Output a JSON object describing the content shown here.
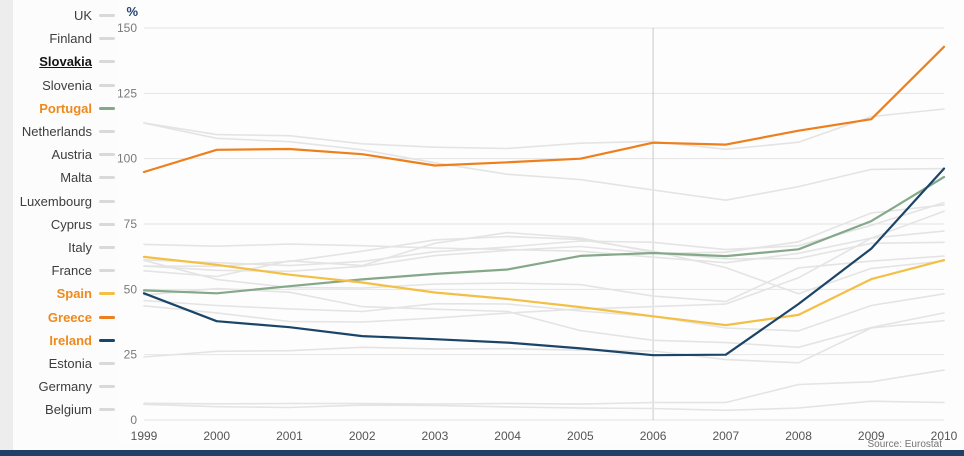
{
  "ui": {
    "bottom_bar_color": "#1f3f66",
    "left_strip_color": "#ededed"
  },
  "legend": {
    "items": [
      {
        "label": "UK",
        "swatch": "#d9d9d9"
      },
      {
        "label": "Finland",
        "swatch": "#d9d9d9"
      },
      {
        "label": "Slovakia",
        "swatch": "#d9d9d9",
        "bold": true,
        "underline": true
      },
      {
        "label": "Slovenia",
        "swatch": "#d9d9d9"
      },
      {
        "label": "Portugal",
        "swatch": "#84a889",
        "highlight": "#ee8a1d"
      },
      {
        "label": "Netherlands",
        "swatch": "#d9d9d9"
      },
      {
        "label": "Austria",
        "swatch": "#d9d9d9"
      },
      {
        "label": "Malta",
        "swatch": "#d9d9d9"
      },
      {
        "label": "Luxembourg",
        "swatch": "#d9d9d9"
      },
      {
        "label": "Cyprus",
        "swatch": "#d9d9d9"
      },
      {
        "label": "Italy",
        "swatch": "#d9d9d9"
      },
      {
        "label": "France",
        "swatch": "#d9d9d9"
      },
      {
        "label": "Spain",
        "swatch": "#f3bf45",
        "highlight": "#ee8a1d"
      },
      {
        "label": "Greece",
        "swatch": "#ee7f1d",
        "highlight": "#ee8a1d"
      },
      {
        "label": "Ireland",
        "swatch": "#1b4568",
        "highlight": "#ee8a1d"
      },
      {
        "label": "Estonia",
        "swatch": "#d9d9d9"
      },
      {
        "label": "Germany",
        "swatch": "#d9d9d9"
      },
      {
        "label": "Belgium",
        "swatch": "#d9d9d9"
      }
    ]
  },
  "chart_data": {
    "type": "line",
    "title": "",
    "ylabel": "%",
    "xlabel": "",
    "source": "Source: Eurostat",
    "x": [
      1999,
      2000,
      2001,
      2002,
      2003,
      2004,
      2005,
      2006,
      2007,
      2008,
      2009,
      2010
    ],
    "ylim": [
      0,
      150
    ],
    "yticks": [
      0,
      25,
      50,
      75,
      100,
      125,
      150
    ],
    "grid": true,
    "grid_color": "#e4e4e4",
    "marker_x": 2006,
    "marker_color": "#c9c9c9",
    "legend_position": "left",
    "series": [
      {
        "name": "UK",
        "color": "#e4e4e4",
        "highlighted": false,
        "values": [
          43.7,
          41.0,
          37.7,
          37.5,
          39.0,
          40.9,
          42.5,
          43.4,
          44.4,
          54.4,
          69.6,
          79.9
        ]
      },
      {
        "name": "Finland",
        "color": "#e4e4e4",
        "highlighted": false,
        "values": [
          45.7,
          43.8,
          42.5,
          41.5,
          44.5,
          44.4,
          41.7,
          39.6,
          35.2,
          34.1,
          43.8,
          48.3
        ]
      },
      {
        "name": "Slovakia",
        "color": "#e4e4e4",
        "highlighted": false,
        "values": [
          47.8,
          50.3,
          48.9,
          43.4,
          42.4,
          41.5,
          34.2,
          30.5,
          29.6,
          27.8,
          35.4,
          41.0
        ]
      },
      {
        "name": "Slovenia",
        "color": "#e4e4e4",
        "highlighted": false,
        "values": [
          24.1,
          26.3,
          26.5,
          27.8,
          27.2,
          27.3,
          26.7,
          26.4,
          23.1,
          21.9,
          35.2,
          38.0
        ]
      },
      {
        "name": "Netherlands",
        "color": "#e4e4e4",
        "highlighted": false,
        "values": [
          61.1,
          53.8,
          50.7,
          50.5,
          52.0,
          52.4,
          51.8,
          47.4,
          45.3,
          58.2,
          60.8,
          62.7
        ]
      },
      {
        "name": "Austria",
        "color": "#e4e4e4",
        "highlighted": false,
        "values": [
          67.2,
          66.5,
          67.3,
          66.7,
          65.8,
          65.2,
          64.6,
          62.3,
          60.2,
          63.8,
          69.6,
          72.3
        ]
      },
      {
        "name": "Malta",
        "color": "#e4e4e4",
        "highlighted": false,
        "values": [
          57.1,
          54.9,
          60.9,
          59.1,
          67.6,
          71.7,
          69.7,
          64.1,
          61.7,
          61.8,
          67.6,
          68.0
        ]
      },
      {
        "name": "Luxembourg",
        "color": "#e4e4e4",
        "highlighted": false,
        "values": [
          6.4,
          6.2,
          6.3,
          6.3,
          6.1,
          6.3,
          6.1,
          6.7,
          6.7,
          13.6,
          14.6,
          19.1
        ]
      },
      {
        "name": "Cyprus",
        "color": "#e4e4e4",
        "highlighted": false,
        "values": [
          58.9,
          58.8,
          60.7,
          64.6,
          68.9,
          70.2,
          69.1,
          64.6,
          58.3,
          48.3,
          58.0,
          60.8
        ]
      },
      {
        "name": "Italy",
        "color": "#e4e4e4",
        "highlighted": false,
        "values": [
          113.7,
          109.2,
          108.8,
          105.7,
          104.4,
          103.9,
          105.9,
          106.6,
          103.6,
          106.3,
          116.1,
          119.0
        ]
      },
      {
        "name": "France",
        "color": "#e4e4e4",
        "highlighted": false,
        "values": [
          58.9,
          57.3,
          56.9,
          58.8,
          62.9,
          64.9,
          66.4,
          63.7,
          64.2,
          68.2,
          79.2,
          82.3
        ]
      },
      {
        "name": "Estonia",
        "color": "#e4e4e4",
        "highlighted": false,
        "values": [
          6.0,
          5.1,
          4.8,
          5.7,
          5.6,
          5.0,
          4.6,
          4.4,
          3.7,
          4.6,
          7.2,
          6.7
        ]
      },
      {
        "name": "Germany",
        "color": "#e4e4e4",
        "highlighted": false,
        "values": [
          61.3,
          60.2,
          59.1,
          60.7,
          64.4,
          66.2,
          68.5,
          68.0,
          65.2,
          66.7,
          74.5,
          83.2
        ]
      },
      {
        "name": "Belgium",
        "color": "#e4e4e4",
        "highlighted": false,
        "values": [
          113.6,
          107.8,
          106.5,
          103.4,
          98.4,
          94.0,
          92.0,
          88.0,
          84.1,
          89.3,
          95.9,
          96.2
        ]
      },
      {
        "name": "Portugal",
        "color": "#84a889",
        "highlighted": true,
        "values": [
          49.6,
          48.5,
          51.2,
          53.8,
          55.9,
          57.6,
          62.8,
          63.9,
          62.7,
          65.3,
          76.1,
          93.0
        ]
      },
      {
        "name": "Spain",
        "color": "#f3bf45",
        "highlighted": true,
        "values": [
          62.4,
          59.4,
          55.6,
          52.6,
          48.8,
          46.3,
          43.2,
          39.7,
          36.3,
          40.2,
          53.9,
          61.2
        ]
      },
      {
        "name": "Greece",
        "color": "#ee7f1d",
        "highlighted": true,
        "values": [
          94.9,
          103.4,
          103.7,
          101.7,
          97.4,
          98.6,
          100.0,
          106.1,
          105.4,
          110.7,
          115.1,
          142.8
        ]
      },
      {
        "name": "Ireland",
        "color": "#1b4568",
        "highlighted": true,
        "values": [
          48.5,
          37.8,
          35.5,
          32.1,
          30.9,
          29.6,
          27.4,
          24.8,
          25.0,
          44.4,
          65.6,
          96.2
        ]
      }
    ]
  }
}
